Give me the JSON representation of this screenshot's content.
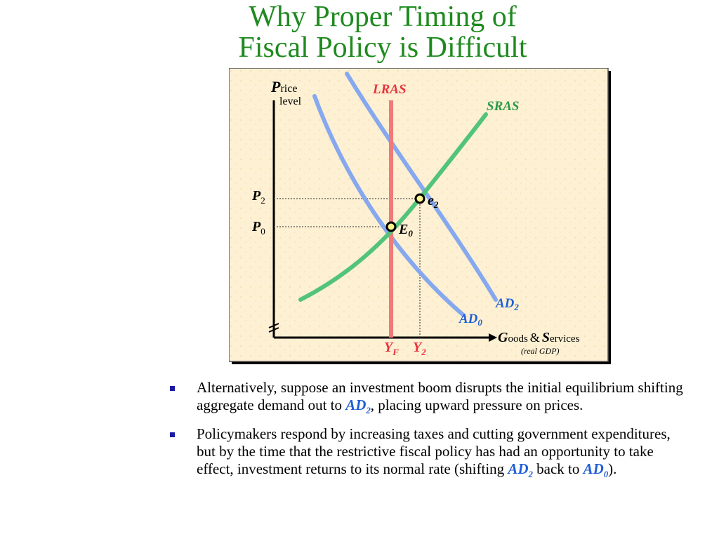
{
  "title": {
    "line1": "Why Proper Timing of",
    "line2": "Fiscal Policy is Difficult"
  },
  "diagram": {
    "y_axis": {
      "big_letter": "P",
      "rest": "rice",
      "line2": "level"
    },
    "x_axis": {
      "big1": "G",
      "rest1": "oods",
      "amp": "&",
      "big2": "S",
      "rest2": "ervices",
      "note": "(real GDP)"
    },
    "curves": {
      "lras": "LRAS",
      "sras": "SRAS",
      "ad0": {
        "main": "AD",
        "sub": "0"
      },
      "ad2": {
        "main": "AD",
        "sub": "2"
      }
    },
    "points": {
      "E0": {
        "main": "E",
        "sub": "0"
      },
      "e2": {
        "main": "e",
        "sub": "2"
      }
    },
    "price_ticks": {
      "p2": {
        "main": "P",
        "sub": "2"
      },
      "p0": {
        "main": "P",
        "sub": "0"
      }
    },
    "output_ticks": {
      "yf": {
        "main": "Y",
        "sub": "F"
      },
      "y2": {
        "main": "Y",
        "sub": "2"
      }
    },
    "colors": {
      "background": "#fdf0d3",
      "lras": "#f07a7a",
      "sras": "#52c47a",
      "ad": "#86a8ee",
      "label_red": "#e8323c",
      "label_green": "#2b9a4a",
      "label_blue": "#1f5fd6"
    }
  },
  "bullets": [
    {
      "before": "Alternatively, suppose an investment boom disrupts the initial equilibrium shifting aggregate demand out to ",
      "term": "AD",
      "term_sub": "2",
      "after": ", placing upward pressure on prices."
    },
    {
      "before": "Policymakers respond by increasing taxes and cutting government expenditures, but by the time that the restrictive fiscal policy has had an opportunity to take effect, investment returns to its normal rate (shifting ",
      "term1": "AD",
      "term1_sub": "2",
      "middle": " back to ",
      "term2": "AD",
      "term2_sub": "0",
      "after": ")."
    }
  ]
}
